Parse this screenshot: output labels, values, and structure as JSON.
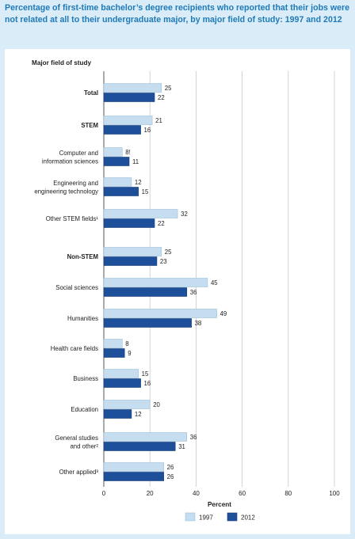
{
  "title": "Percentage of first-time bachelor’s degree recipients who reported that their jobs were not related at all to their undergraduate major, by major field of study: 1997 and 2012",
  "chart_data": {
    "type": "bar",
    "orientation": "horizontal",
    "ylabel": "Major field of study",
    "xlabel": "Percent",
    "xlim": [
      0,
      100
    ],
    "xticks": [
      "0",
      "20",
      "40",
      "60",
      "80",
      "100"
    ],
    "grid": true,
    "legend_position": "bottom",
    "categories": [
      {
        "lines": [
          "Total"
        ],
        "bold": true
      },
      {
        "lines": [
          "STEM"
        ],
        "bold": true
      },
      {
        "lines": [
          "Computer and",
          "information sciences"
        ],
        "bold": false
      },
      {
        "lines": [
          "Engineering and",
          "engineering technology"
        ],
        "bold": false
      },
      {
        "lines": [
          "Other STEM fields¹"
        ],
        "bold": false
      },
      {
        "lines": [
          "Non-STEM"
        ],
        "bold": true
      },
      {
        "lines": [
          "Social sciences"
        ],
        "bold": false
      },
      {
        "lines": [
          "Humanities"
        ],
        "bold": false
      },
      {
        "lines": [
          "Health care fields"
        ],
        "bold": false
      },
      {
        "lines": [
          "Business"
        ],
        "bold": false
      },
      {
        "lines": [
          "Education"
        ],
        "bold": false
      },
      {
        "lines": [
          "General studies",
          "and other²"
        ],
        "bold": false
      },
      {
        "lines": [
          "Other applied³"
        ],
        "bold": false
      }
    ],
    "series": [
      {
        "name": "1997",
        "color": "#c5ddee",
        "values": [
          25,
          21,
          8,
          12,
          32,
          25,
          45,
          49,
          8,
          15,
          20,
          36,
          26
        ],
        "labels": [
          "25",
          "21",
          "8!",
          "12",
          "32",
          "25",
          "45",
          "49",
          "8",
          "15",
          "20",
          "36",
          "26"
        ]
      },
      {
        "name": "2012",
        "color": "#1e4f9a",
        "values": [
          22,
          16,
          11,
          15,
          22,
          23,
          36,
          38,
          9,
          16,
          12,
          31,
          26
        ],
        "labels": [
          "22",
          "16",
          "11",
          "15",
          "22",
          "23",
          "36",
          "38",
          "9",
          "16",
          "12",
          "31",
          "26"
        ]
      }
    ]
  }
}
